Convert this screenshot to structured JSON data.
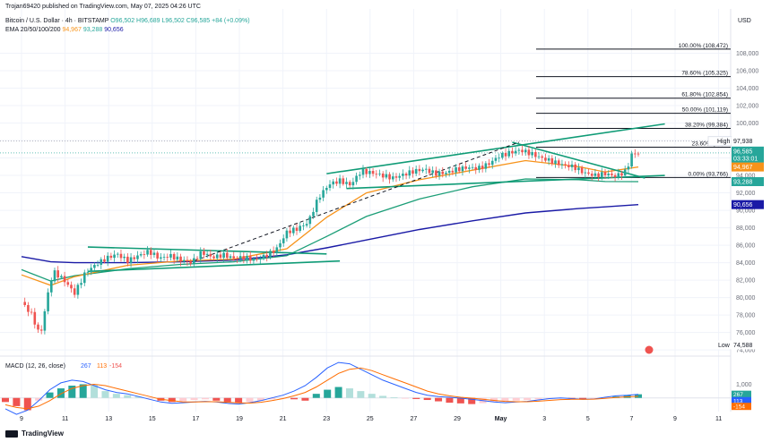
{
  "header": {
    "publisher": "Trojan69420 published on TradingView.com, May 07, 2025 04:26 UTC",
    "symbol": "Bitcoin / U.S. Dollar · 4h · BITSTAMP",
    "ohlc": "O96,502 H96,689 L96,502 C96,585 +84 (+0.09%)",
    "ema_label": "EMA 20/50/100/200",
    "ema_values": [
      "94,967",
      "93,288",
      "90,656"
    ],
    "currency": "USD"
  },
  "footer": {
    "brand": "TradingView"
  },
  "colors": {
    "up": "#26a69a",
    "down": "#ef5350",
    "ema20": "#f7931a",
    "ema50": "#26a69a",
    "ema100": "#1b9e77",
    "ema200": "#1a1aa6",
    "macd": "#2962ff",
    "signal": "#ff6d00"
  },
  "chart_data": {
    "type": "candlestick",
    "title": "Bitcoin / U.S. Dollar · 4h · BITSTAMP",
    "ylabel": "USD",
    "ylim": [
      73500,
      110000
    ],
    "x_ticks": [
      "9",
      "11",
      "13",
      "15",
      "17",
      "19",
      "21",
      "23",
      "25",
      "27",
      "29",
      "May",
      "3",
      "5",
      "7",
      "9",
      "11"
    ],
    "y_ticks": [
      "74,000",
      "76,000",
      "78,000",
      "80,000",
      "82,000",
      "84,000",
      "86,000",
      "88,000",
      "90,000",
      "92,000",
      "94,000",
      "96,000",
      "98,000",
      "100,000",
      "102,000",
      "104,000",
      "106,000",
      "108,000"
    ],
    "price_labels": {
      "high": "High",
      "high_value": "97,938",
      "last": "96,585",
      "countdown": "03:33:01",
      "ema20": "94,967",
      "ema50": "93,288",
      "ema200": "90,656",
      "low": "Low",
      "low_value": "74,588"
    },
    "fibonacci": [
      {
        "label": "100.00% (108,472)",
        "price": 108472
      },
      {
        "label": "78.60% (105,325)",
        "price": 105325
      },
      {
        "label": "61.80% (102,854)",
        "price": 102854
      },
      {
        "label": "50.00% (101,119)",
        "price": 101119
      },
      {
        "label": "38.20% (99,384)",
        "price": 99384
      },
      {
        "label": "23.60% (97,...",
        "price": 97238
      },
      {
        "label": "0.00% (93,766)",
        "price": 93766
      }
    ],
    "close_path": [
      [
        0,
        79500
      ],
      [
        0.8,
        78000
      ],
      [
        1.4,
        75500
      ],
      [
        2.0,
        80500
      ],
      [
        2.4,
        83000
      ],
      [
        3.2,
        82000
      ],
      [
        4.0,
        80500
      ],
      [
        4.8,
        82800
      ],
      [
        5.6,
        83800
      ],
      [
        6.4,
        84500
      ],
      [
        7.2,
        85000
      ],
      [
        8.0,
        84200
      ],
      [
        8.8,
        84800
      ],
      [
        9.6,
        85300
      ],
      [
        10.4,
        84500
      ],
      [
        11.2,
        84800
      ],
      [
        12.0,
        84300
      ],
      [
        12.8,
        84000
      ],
      [
        13.6,
        85200
      ],
      [
        14.4,
        84600
      ],
      [
        15.2,
        84900
      ],
      [
        16.0,
        84500
      ],
      [
        16.8,
        84600
      ],
      [
        17.6,
        84300
      ],
      [
        18.4,
        84800
      ],
      [
        19.2,
        85500
      ],
      [
        20.0,
        87500
      ],
      [
        20.8,
        87900
      ],
      [
        21.6,
        88600
      ],
      [
        22.4,
        91500
      ],
      [
        23.2,
        93000
      ],
      [
        24.0,
        93400
      ],
      [
        24.8,
        92900
      ],
      [
        25.6,
        94500
      ],
      [
        26.4,
        94300
      ],
      [
        27.2,
        94000
      ],
      [
        28.0,
        93700
      ],
      [
        28.8,
        94100
      ],
      [
        29.6,
        94500
      ],
      [
        30.4,
        94700
      ],
      [
        31.2,
        94200
      ],
      [
        32.0,
        94300
      ],
      [
        32.8,
        94700
      ],
      [
        33.6,
        94900
      ],
      [
        34.4,
        94800
      ],
      [
        35.2,
        95300
      ],
      [
        36.0,
        96200
      ],
      [
        36.8,
        96600
      ],
      [
        37.6,
        96900
      ],
      [
        38.4,
        96500
      ],
      [
        39.2,
        96000
      ],
      [
        40.0,
        95600
      ],
      [
        40.8,
        95200
      ],
      [
        41.6,
        95000
      ],
      [
        42.4,
        94300
      ],
      [
        43.2,
        94000
      ],
      [
        44.0,
        94200
      ],
      [
        44.8,
        93900
      ],
      [
        45.6,
        94500
      ],
      [
        46.0,
        96400
      ],
      [
        46.5,
        96585
      ]
    ],
    "ema20": [
      [
        0,
        82600
      ],
      [
        2.2,
        81400
      ],
      [
        4,
        82400
      ],
      [
        8,
        83700
      ],
      [
        12,
        84200
      ],
      [
        16,
        84400
      ],
      [
        20,
        85600
      ],
      [
        23,
        89200
      ],
      [
        26,
        92000
      ],
      [
        30,
        93500
      ],
      [
        34,
        94600
      ],
      [
        38,
        95700
      ],
      [
        42,
        95000
      ],
      [
        44,
        94400
      ],
      [
        46.5,
        94967
      ]
    ],
    "ema50": [
      [
        0,
        83200
      ],
      [
        2.2,
        81900
      ],
      [
        4,
        82500
      ],
      [
        8,
        83300
      ],
      [
        12,
        83800
      ],
      [
        16,
        84100
      ],
      [
        20,
        84800
      ],
      [
        23,
        87000
      ],
      [
        26,
        89300
      ],
      [
        30,
        91300
      ],
      [
        34,
        92700
      ],
      [
        38,
        93600
      ],
      [
        42,
        93500
      ],
      [
        44,
        93300
      ],
      [
        46.5,
        93288
      ]
    ],
    "ema200": [
      [
        0,
        84700
      ],
      [
        2.2,
        84100
      ],
      [
        4,
        84000
      ],
      [
        8,
        84000
      ],
      [
        12,
        84100
      ],
      [
        16,
        84300
      ],
      [
        20,
        84900
      ],
      [
        23,
        85700
      ],
      [
        26,
        86600
      ],
      [
        30,
        87800
      ],
      [
        34,
        88800
      ],
      [
        38,
        89700
      ],
      [
        42,
        90200
      ],
      [
        44,
        90400
      ],
      [
        46.5,
        90656
      ]
    ],
    "trendlines": [
      {
        "from": [
          23.0,
          94200
        ],
        "to": [
          48.5,
          99900
        ]
      },
      {
        "from": [
          24.5,
          92500
        ],
        "to": [
          48.5,
          94000
        ]
      },
      {
        "from": [
          5.0,
          85800
        ],
        "to": [
          23.0,
          85000
        ]
      },
      {
        "from": [
          5.0,
          83000
        ],
        "to": [
          24.0,
          84200
        ]
      },
      {
        "from": [
          37.0,
          97800
        ],
        "to": [
          47.0,
          93700
        ]
      }
    ],
    "dashed_path": [
      [
        13,
        84200
      ],
      [
        37.5,
        97800
      ]
    ],
    "macd": {
      "label": "MACD (12, 26, close)",
      "values": [
        "267",
        "113",
        "-154"
      ],
      "y_ticks": [
        "1,000"
      ],
      "histogram": [
        -300,
        -600,
        -900,
        -200,
        400,
        700,
        900,
        1000,
        950,
        500,
        300,
        200,
        100,
        -50,
        -200,
        -300,
        -250,
        -150,
        -100,
        -200,
        -300,
        -350,
        -300,
        -200,
        -100,
        -50,
        -100,
        -200,
        300,
        600,
        800,
        700,
        500,
        300,
        150,
        50,
        -20,
        -80,
        -150,
        -250,
        -350,
        -400,
        -450,
        -380,
        -300,
        -250,
        -200,
        -150,
        -100,
        -50,
        -30,
        -60,
        -120,
        -80,
        -20,
        100,
        200,
        267
      ],
      "macd_line": [
        -800,
        -1200,
        -900,
        -200,
        600,
        1100,
        1300,
        1200,
        900,
        600,
        400,
        300,
        100,
        -100,
        -300,
        -400,
        -350,
        -300,
        -250,
        -300,
        -400,
        -450,
        -350,
        -200,
        0,
        200,
        500,
        900,
        1500,
        2200,
        2600,
        2500,
        2100,
        1700,
        1300,
        1000,
        700,
        400,
        200,
        100,
        50,
        -20,
        -100,
        -200,
        -300,
        -350,
        -300,
        -250,
        -150,
        -50,
        0,
        -50,
        -100,
        -80,
        50,
        150,
        200,
        267
      ],
      "signal_line": [
        -500,
        -700,
        -800,
        -600,
        -200,
        300,
        700,
        900,
        1000,
        900,
        700,
        500,
        300,
        100,
        -100,
        -200,
        -300,
        -300,
        -280,
        -280,
        -320,
        -360,
        -380,
        -320,
        -200,
        -50,
        150,
        400,
        800,
        1300,
        1800,
        2100,
        2200,
        2000,
        1700,
        1400,
        1100,
        800,
        500,
        300,
        150,
        50,
        -20,
        -100,
        -180,
        -250,
        -280,
        -280,
        -240,
        -180,
        -120,
        -100,
        -100,
        -90,
        -40,
        30,
        80,
        113
      ]
    }
  }
}
